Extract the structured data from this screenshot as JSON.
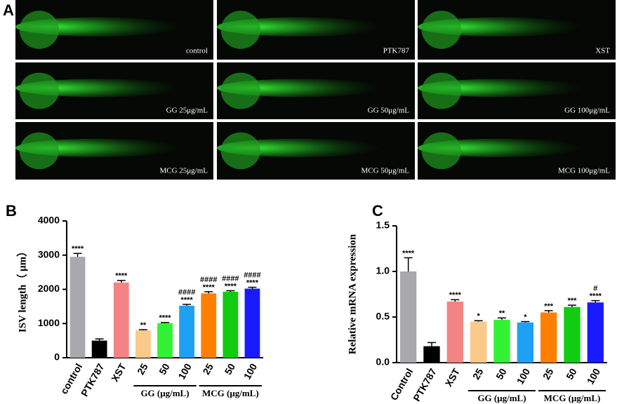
{
  "panel_a": {
    "label": "A",
    "images": [
      {
        "caption": "control"
      },
      {
        "caption": "PTK787"
      },
      {
        "caption": "XST"
      },
      {
        "caption": "GG 25μg/mL"
      },
      {
        "caption": "GG 50μg/mL"
      },
      {
        "caption": "GG 100μg/mL"
      },
      {
        "caption": "MCG 25μg/mL"
      },
      {
        "caption": "MCG 50μg/mL"
      },
      {
        "caption": "MCG 100μg/mL"
      }
    ]
  },
  "chart_data": [
    {
      "type": "bar",
      "panel": "B",
      "ylabel": "ISV length（ μm）",
      "categories": [
        "control",
        "PTK787",
        "XST",
        "25",
        "50",
        "100",
        "25",
        "50",
        "100"
      ],
      "category_groups": [
        {
          "label": "GG (μg/mL)",
          "members": [
            3,
            4,
            5
          ]
        },
        {
          "label": "MCG (μg/mL)",
          "members": [
            6,
            7,
            8
          ]
        }
      ],
      "values": [
        2950,
        500,
        2200,
        800,
        1010,
        1520,
        1880,
        1930,
        2020
      ],
      "errors": [
        100,
        50,
        60,
        20,
        20,
        40,
        50,
        30,
        40
      ],
      "colors": [
        "#a8a8ad",
        "#000000",
        "#f48484",
        "#fbc98a",
        "#33f233",
        "#1ea0f5",
        "#ff8000",
        "#11cc11",
        "#1a1aff"
      ],
      "significance": [
        "****",
        null,
        "****",
        "**",
        "****",
        "****",
        "****",
        "****",
        "****"
      ],
      "hash_significance": [
        null,
        null,
        null,
        null,
        null,
        "####",
        "####",
        "####",
        "####"
      ],
      "ylim": [
        0,
        4000
      ],
      "yticks": [
        0,
        1000,
        2000,
        3000,
        4000
      ]
    },
    {
      "type": "bar",
      "panel": "C",
      "ylabel": "Relative mRNA expression",
      "categories": [
        "Control",
        "PTK787",
        "XST",
        "25",
        "50",
        "100",
        "25",
        "50",
        "100"
      ],
      "category_groups": [
        {
          "label": "GG (μg/mL)",
          "members": [
            3,
            4,
            5
          ]
        },
        {
          "label": "MCG (μg/mL)",
          "members": [
            6,
            7,
            8
          ]
        }
      ],
      "values": [
        1.0,
        0.18,
        0.67,
        0.45,
        0.47,
        0.44,
        0.55,
        0.61,
        0.66
      ],
      "errors": [
        0.15,
        0.04,
        0.02,
        0.01,
        0.02,
        0.01,
        0.02,
        0.02,
        0.02
      ],
      "colors": [
        "#a8a8ad",
        "#000000",
        "#f48484",
        "#fbc98a",
        "#33f233",
        "#1ea0f5",
        "#ff8000",
        "#11cc11",
        "#1a1aff"
      ],
      "significance": [
        "****",
        null,
        "****",
        "*",
        "**",
        "*",
        "***",
        "***",
        "****"
      ],
      "hash_significance": [
        null,
        null,
        null,
        null,
        null,
        null,
        null,
        null,
        "#"
      ],
      "ylim": [
        0,
        1.5
      ],
      "yticks": [
        {
          "value": 0,
          "label": "0.0"
        },
        0.5,
        {
          "value": 1,
          "label": "1.0"
        },
        1.5
      ]
    }
  ]
}
